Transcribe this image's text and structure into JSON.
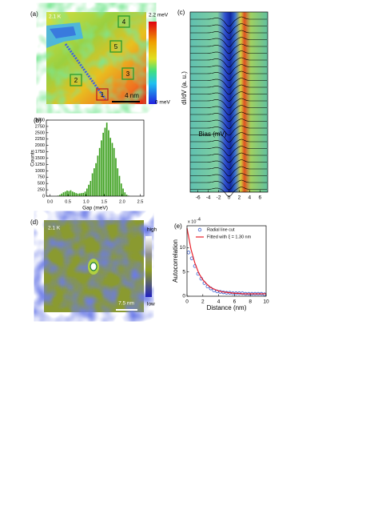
{
  "images": [
    {
      "panel": "(a)",
      "temperature": "2.1 K",
      "colorbar_max": "2.2 meV",
      "colorbar_min": "0 meV",
      "scale_bar": "4 nm",
      "boxes": [
        "1",
        "2",
        "3",
        "4",
        "5"
      ]
    },
    {
      "panel": "(d)",
      "temperature": "2.1 K",
      "colorbar_max": "high",
      "colorbar_min": "low",
      "scale_bar": "7.5 nm"
    }
  ],
  "chart_data": [
    {
      "type": "histogram",
      "panel": "(b)",
      "xlabel": "Gap (meV)",
      "ylabel": "Counts",
      "color": "#3ca01e",
      "bins": [
        0.2,
        0.25,
        0.3,
        0.35,
        0.4,
        0.45,
        0.5,
        0.55,
        0.6,
        0.65,
        0.7,
        0.75,
        0.8,
        0.85,
        0.9,
        0.95,
        1.0,
        1.05,
        1.1,
        1.15,
        1.2,
        1.25,
        1.3,
        1.35,
        1.4,
        1.45,
        1.5,
        1.55,
        1.6,
        1.65,
        1.7,
        1.75,
        1.8,
        1.85,
        1.9,
        1.95,
        2.0,
        2.05,
        2.1,
        2.15,
        2.2
      ],
      "values": [
        20,
        50,
        100,
        150,
        180,
        220,
        200,
        230,
        180,
        150,
        120,
        100,
        110,
        120,
        130,
        180,
        300,
        450,
        600,
        900,
        1100,
        1300,
        1600,
        1900,
        2200,
        2500,
        2700,
        2900,
        2600,
        2300,
        2100,
        1900,
        1500,
        1100,
        800,
        500,
        300,
        150,
        60,
        20
      ],
      "xlim": [
        -0.1,
        2.6
      ],
      "xticks": [
        {
          "value": 0,
          "label": "0.0"
        },
        0.5,
        {
          "value": 1,
          "label": "1.0"
        },
        1.5,
        {
          "value": 2,
          "label": "2.0"
        },
        2.5
      ],
      "ylim": [
        0,
        3000
      ],
      "yticks": [
        0,
        250,
        500,
        750,
        1000,
        1250,
        1500,
        1750,
        2000,
        2250,
        2500,
        2750,
        3000
      ]
    },
    {
      "type": "waterfall",
      "panel": "(c)",
      "xlabel": "Bias (mV)",
      "ylabel": "dI/dV (a. u.)",
      "xlim": [
        -7.5,
        7.5
      ],
      "xticks": [
        -6,
        -4,
        -2,
        0,
        2,
        4,
        6
      ]
    },
    {
      "type": "line",
      "panel": "(e)",
      "xlabel": "Distance (nm)",
      "ylabel": "Autocorrelation",
      "multiplier": "x 10",
      "multiplier_exp": "-4",
      "xlim": [
        0,
        10
      ],
      "xticks": [
        0,
        2,
        4,
        6,
        8,
        10
      ],
      "ylim": [
        0,
        14.5
      ],
      "yticks": [
        0,
        5,
        10
      ],
      "series": [
        {
          "name": "Radial line cut",
          "color": "#3a5fcd",
          "style": "markers",
          "x": [
            0.2,
            0.6,
            1.0,
            1.4,
            1.8,
            2.2,
            2.6,
            3.0,
            3.4,
            3.8,
            4.2,
            4.6,
            5.0,
            5.4,
            5.8,
            6.2,
            6.6,
            7.0,
            7.4,
            7.8,
            8.2,
            8.6,
            9.0,
            9.4,
            9.8
          ],
          "values": [
            9.0,
            7.8,
            6.2,
            4.6,
            3.6,
            2.7,
            2.0,
            1.6,
            1.2,
            1.0,
            0.9,
            0.8,
            0.7,
            0.7,
            0.6,
            0.6,
            0.6,
            0.6,
            0.5,
            0.5,
            0.5,
            0.5,
            0.5,
            0.5,
            0.4
          ]
        },
        {
          "name": "Fitted with ξ = 1.30 nm",
          "color": "#e8202a",
          "style": "line",
          "x": [
            0,
            0.5,
            1,
            1.5,
            2,
            2.5,
            3,
            3.5,
            4,
            4.5,
            5,
            5.5,
            6,
            6.5,
            7,
            7.5,
            8,
            8.5,
            9,
            9.5,
            10
          ],
          "values": [
            14.0,
            9.7,
            6.8,
            4.7,
            3.4,
            2.5,
            1.8,
            1.4,
            1.1,
            0.9,
            0.8,
            0.7,
            0.6,
            0.6,
            0.5,
            0.5,
            0.5,
            0.5,
            0.5,
            0.5,
            0.5
          ]
        }
      ]
    }
  ]
}
